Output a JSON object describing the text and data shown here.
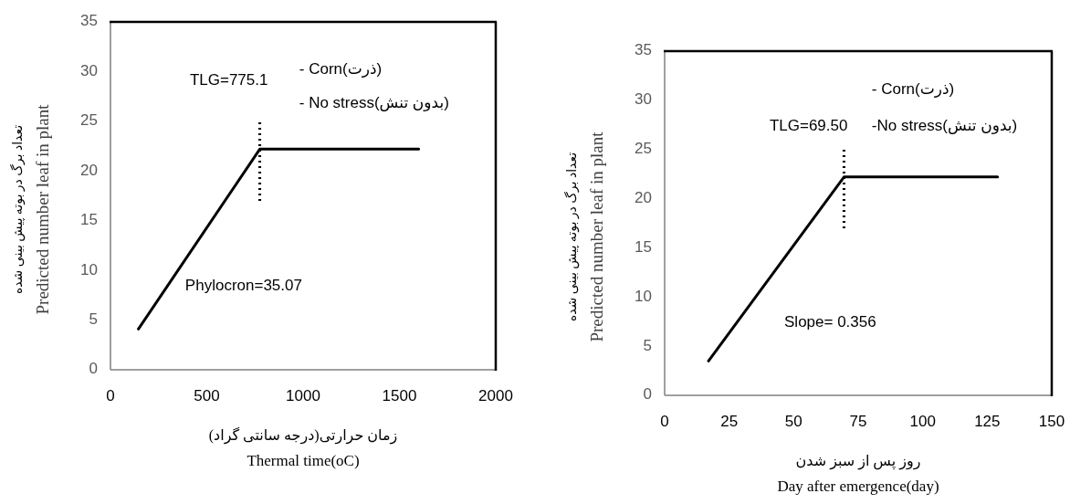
{
  "chart_data": [
    {
      "type": "line",
      "xlabel": "زمان حرارتی(درجه سانتی گراد)\nThermal time(oC)",
      "ylabel": "تعداد برگ در بوته پیش بینی شده\nPredicted number leaf in plant",
      "xlim": [
        0,
        2000
      ],
      "xticks": [
        0,
        500,
        1000,
        1500,
        2000
      ],
      "ylim": [
        0,
        35
      ],
      "yticks": [
        0,
        5,
        10,
        15,
        20,
        25,
        30,
        35
      ],
      "series": [
        {
          "color": "#000000",
          "line_style": "solid",
          "x": [
            145,
            775.1,
            1600
          ],
          "values": [
            4.1,
            22.2,
            22.2
          ]
        },
        {
          "color": "#000000",
          "line_style": "dotted",
          "x": [
            775.1,
            775.1
          ],
          "values": [
            17,
            25
          ]
        }
      ],
      "annotations": [
        "TLG=775.1",
        "- Corn(ذرت)",
        "- No stress(بدون تنش)",
        "Phylocron=35.07"
      ]
    },
    {
      "type": "line",
      "xlabel": "روز پس از سبز شدن\nDay after emergence(day)",
      "ylabel": "تعداد برگ در بوته پیش بینی شده\nPredicted number leaf in plant",
      "xlim": [
        0,
        150
      ],
      "xticks": [
        0,
        25,
        50,
        75,
        100,
        125,
        150
      ],
      "ylim": [
        0,
        35
      ],
      "yticks": [
        0,
        5,
        10,
        15,
        20,
        25,
        30,
        35
      ],
      "series": [
        {
          "color": "#000000",
          "line_style": "solid",
          "x": [
            17,
            69.5,
            129
          ],
          "values": [
            3.5,
            22.2,
            22.2
          ]
        },
        {
          "color": "#000000",
          "line_style": "dotted",
          "x": [
            69.5,
            69.5
          ],
          "values": [
            17,
            25
          ]
        }
      ],
      "annotations": [
        "- Corn(ذرت)",
        "TLG=69.50",
        "-No stress(بدون تنش)",
        "Slope= 0.356"
      ]
    }
  ]
}
